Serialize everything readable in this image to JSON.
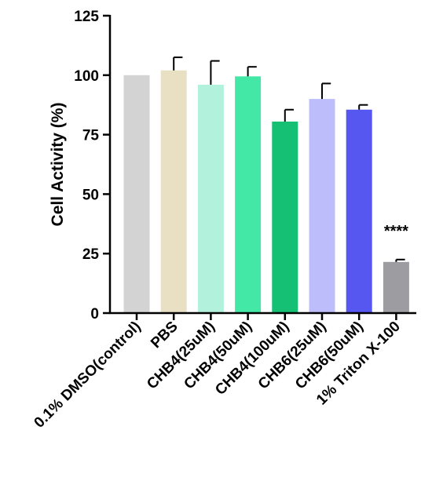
{
  "chart_data": {
    "type": "bar",
    "title": "",
    "xlabel": "",
    "ylabel": "Cell Activity (%)",
    "ylim": [
      0,
      125
    ],
    "yticks": [
      0,
      25,
      50,
      75,
      100,
      125
    ],
    "ytick_labels": [
      "0",
      "25",
      "50",
      "75",
      "100",
      "125"
    ],
    "grid": false,
    "legend": "none",
    "categories": [
      "0.1% DMSO(control)",
      "PBS",
      "CHB4(25uM)",
      "CHB4(50uM)",
      "CHB4(100uM)",
      "CHB6(25uM)",
      "CHB6(50uM)",
      "1% Triton X-100"
    ],
    "values": [
      100,
      102,
      96,
      99.5,
      80.5,
      90,
      85.5,
      21.5
    ],
    "errors": [
      0,
      5.5,
      10,
      4,
      5,
      6.5,
      2,
      1
    ],
    "colors": [
      "#d3d3d3",
      "#e9dfc3",
      "#b2f2dc",
      "#44e8a6",
      "#15bf73",
      "#bdbdfb",
      "#5656f0",
      "#9d9da1"
    ],
    "annotations": [
      {
        "category": "1% Triton X-100",
        "text": "****"
      }
    ]
  }
}
